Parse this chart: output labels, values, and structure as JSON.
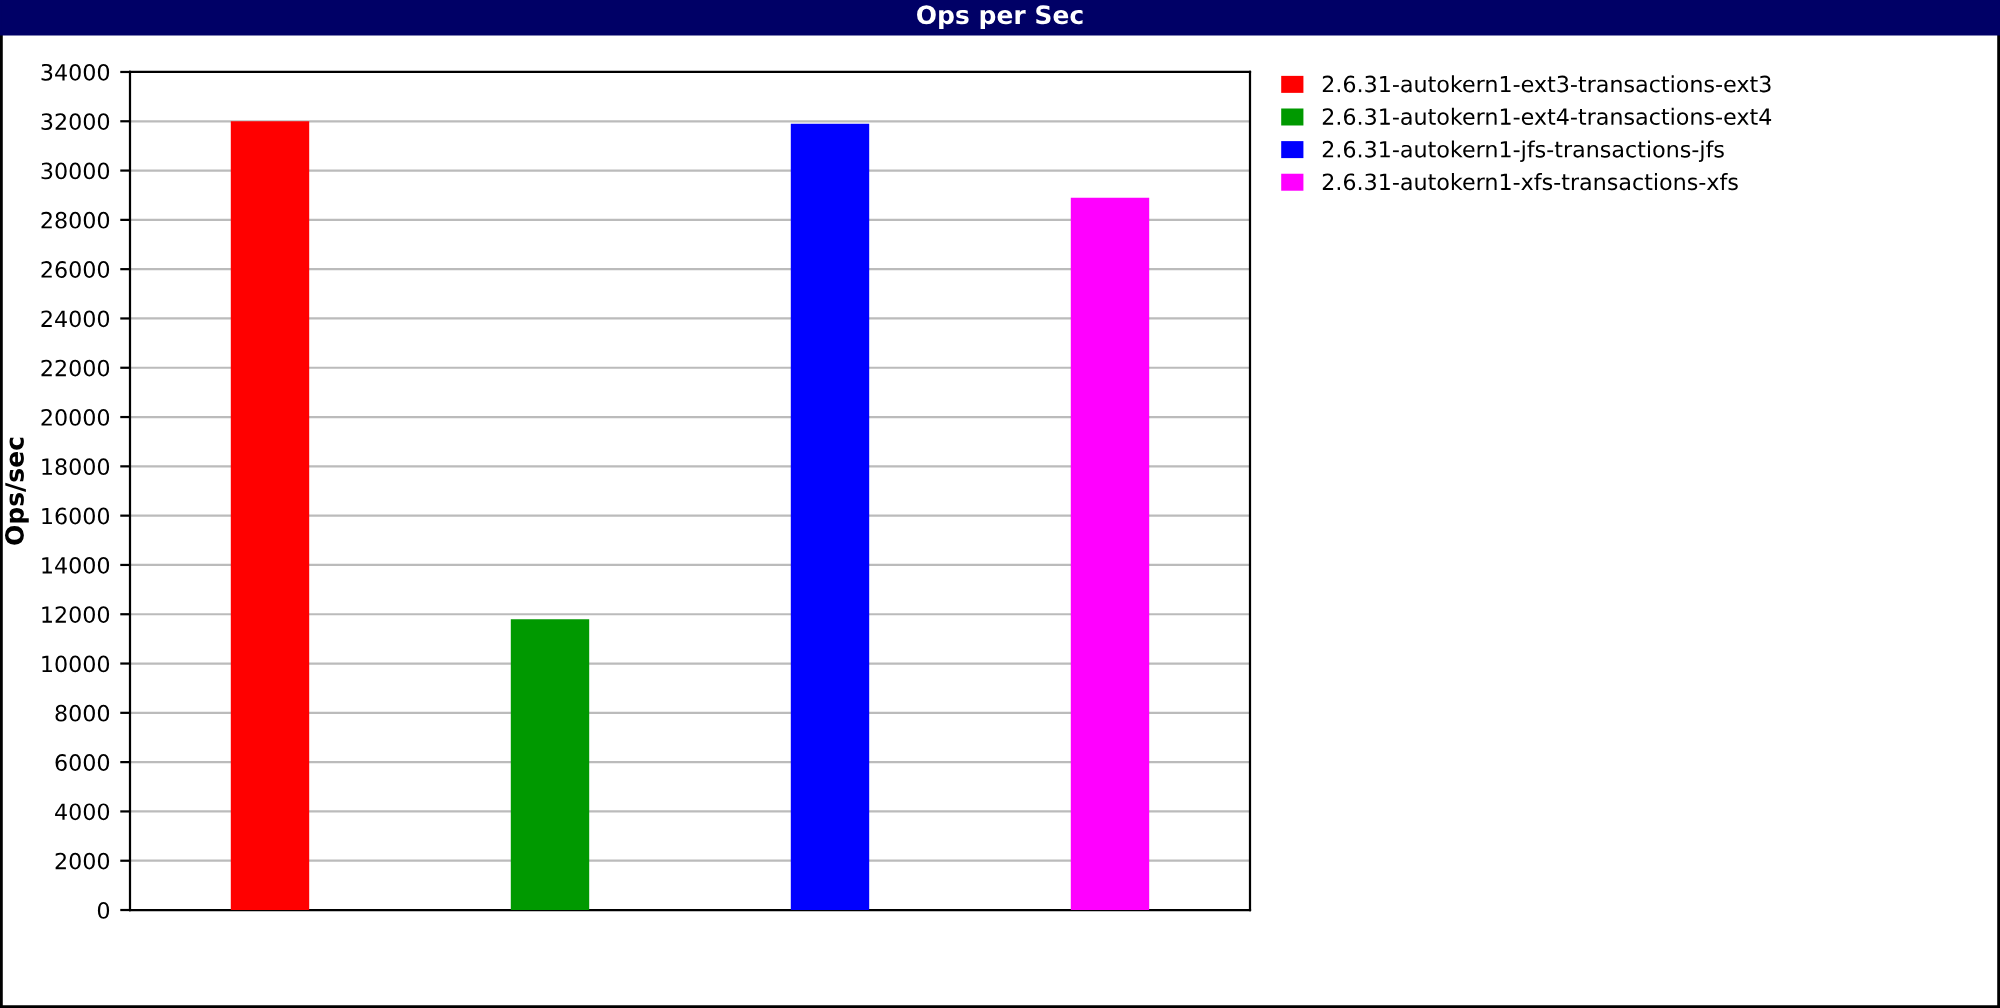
{
  "chart_data": {
    "type": "bar",
    "title": "Ops per Sec",
    "ylabel": "Ops/sec",
    "categories": [
      null,
      null,
      null,
      null
    ],
    "series": [
      {
        "name": "2.6.31-autokern1-ext3-transactions-ext3",
        "color": "#ff0000",
        "values": [
          32000,
          null,
          null,
          null
        ]
      },
      {
        "name": "2.6.31-autokern1-ext4-transactions-ext4",
        "color": "#009900",
        "values": [
          null,
          11800,
          null,
          null
        ]
      },
      {
        "name": "2.6.31-autokern1-jfs-transactions-jfs",
        "color": "#0000ff",
        "values": [
          null,
          null,
          31900,
          null
        ]
      },
      {
        "name": "2.6.31-autokern1-xfs-transactions-xfs",
        "color": "#ff00ff",
        "values": [
          null,
          null,
          null,
          28900
        ]
      }
    ],
    "ylim": [
      0,
      34000
    ],
    "yticks": [
      0,
      2000,
      4000,
      6000,
      8000,
      10000,
      12000,
      14000,
      16000,
      18000,
      20000,
      22000,
      24000,
      26000,
      28000,
      30000,
      32000,
      34000
    ],
    "grid": "y",
    "legend": "top right"
  }
}
